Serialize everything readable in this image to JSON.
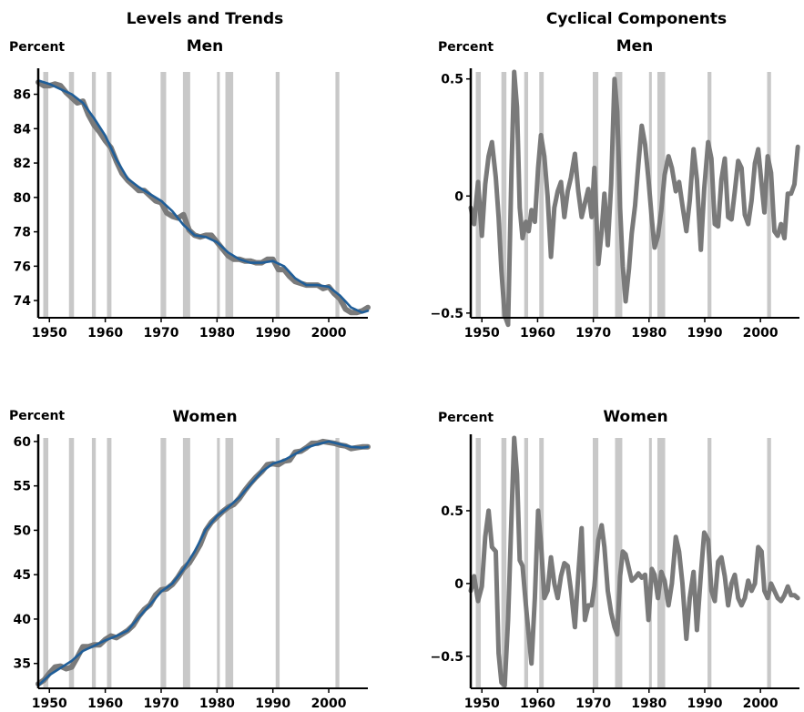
{
  "column_titles": [
    "Levels and Trends",
    "Cyclical Components"
  ],
  "colors": {
    "actual": "#7a7a7a",
    "trend": "#1f5e99",
    "recession": "#c8c8c8",
    "axis": "#000000"
  },
  "recessions": [
    [
      1948.9,
      1949.8
    ],
    [
      1953.5,
      1954.4
    ],
    [
      1957.6,
      1958.3
    ],
    [
      1960.3,
      1961.1
    ],
    [
      1969.9,
      1970.9
    ],
    [
      1973.9,
      1975.2
    ],
    [
      1980.0,
      1980.5
    ],
    [
      1981.5,
      1982.9
    ],
    [
      1990.5,
      1991.2
    ],
    [
      2001.2,
      2001.9
    ]
  ],
  "chart_data": [
    {
      "id": "men-level",
      "type": "line",
      "title": "Men",
      "ylabel": "Percent",
      "xlim": [
        1948,
        2007
      ],
      "ylim": [
        73,
        87.3
      ],
      "xticks": [
        1950,
        1960,
        1970,
        1980,
        1990,
        2000
      ],
      "xtick_labels": [
        "1950",
        "1960",
        "1970",
        "1980",
        "1990",
        "2000"
      ],
      "yticks": [
        74,
        76,
        78,
        80,
        82,
        84,
        86
      ],
      "ytick_labels": [
        "74",
        "76",
        "78",
        "80",
        "82",
        "84",
        "86"
      ],
      "series": [
        {
          "role": "actual",
          "x": [
            1948,
            1949,
            1950,
            1951,
            1952,
            1953,
            1954,
            1955,
            1956,
            1957,
            1958,
            1959,
            1960,
            1961,
            1962,
            1963,
            1964,
            1965,
            1966,
            1967,
            1968,
            1969,
            1970,
            1971,
            1972,
            1973,
            1974,
            1975,
            1976,
            1977,
            1978,
            1979,
            1980,
            1981,
            1982,
            1983,
            1984,
            1985,
            1986,
            1987,
            1988,
            1989,
            1990,
            1991,
            1992,
            1993,
            1994,
            1995,
            1996,
            1997,
            1998,
            1999,
            2000,
            2001,
            2002,
            2003,
            2004,
            2005,
            2006,
            2007
          ],
          "y": [
            86.7,
            86.5,
            86.5,
            86.6,
            86.5,
            86.1,
            85.8,
            85.5,
            85.6,
            84.8,
            84.2,
            83.8,
            83.3,
            82.9,
            82.1,
            81.4,
            81.0,
            80.7,
            80.4,
            80.4,
            80.1,
            79.8,
            79.7,
            79.1,
            78.9,
            78.8,
            79.0,
            78.1,
            77.8,
            77.7,
            77.8,
            77.8,
            77.4,
            77.0,
            76.6,
            76.4,
            76.4,
            76.3,
            76.3,
            76.2,
            76.2,
            76.4,
            76.4,
            75.8,
            75.8,
            75.4,
            75.1,
            75.0,
            74.9,
            74.9,
            74.9,
            74.7,
            74.8,
            74.4,
            74.1,
            73.5,
            73.3,
            73.3,
            73.4,
            73.6
          ]
        },
        {
          "role": "trend",
          "x": [
            1948,
            1950,
            1952,
            1954,
            1956,
            1958,
            1960,
            1962,
            1964,
            1966,
            1968,
            1970,
            1972,
            1974,
            1976,
            1978,
            1980,
            1982,
            1984,
            1986,
            1988,
            1990,
            1992,
            1994,
            1996,
            1998,
            2000,
            2002,
            2004,
            2006,
            2007
          ],
          "y": [
            86.8,
            86.6,
            86.3,
            86.0,
            85.5,
            84.6,
            83.6,
            82.2,
            81.1,
            80.6,
            80.2,
            79.8,
            79.2,
            78.4,
            77.8,
            77.7,
            77.4,
            76.8,
            76.4,
            76.2,
            76.2,
            76.3,
            76.0,
            75.3,
            74.9,
            74.9,
            74.8,
            74.3,
            73.6,
            73.3,
            73.4
          ]
        }
      ]
    },
    {
      "id": "men-cycle",
      "type": "line",
      "title": "Men",
      "ylabel": "Percent",
      "xlim": [
        1948,
        2007
      ],
      "ylim": [
        -0.52,
        0.53
      ],
      "xticks": [
        1950,
        1960,
        1970,
        1980,
        1990,
        2000
      ],
      "xtick_labels": [
        "1950",
        "1960",
        "1970",
        "1980",
        "1990",
        "2000"
      ],
      "yticks": [
        -0.5,
        0,
        0.5
      ],
      "ytick_labels": [
        "−0.5",
        "0",
        "0.5"
      ],
      "series": [
        {
          "role": "actual",
          "x": [
            1948,
            1948.6,
            1949.3,
            1950.0,
            1950.6,
            1951.2,
            1951.8,
            1952.5,
            1953.0,
            1953.5,
            1954.1,
            1954.7,
            1955.3,
            1955.8,
            1956.3,
            1956.8,
            1957.3,
            1957.9,
            1958.4,
            1958.9,
            1959.5,
            1960.1,
            1960.6,
            1961.2,
            1961.8,
            1962.4,
            1963.0,
            1963.6,
            1964.2,
            1964.8,
            1965.4,
            1966.0,
            1966.7,
            1967.3,
            1967.9,
            1968.5,
            1969.1,
            1969.7,
            1970.2,
            1970.9,
            1971.5,
            1972.0,
            1972.6,
            1973.2,
            1973.8,
            1974.3,
            1974.8,
            1975.3,
            1975.8,
            1976.4,
            1976.9,
            1977.5,
            1978.1,
            1978.7,
            1979.3,
            1979.9,
            1980.5,
            1981.0,
            1981.6,
            1982.2,
            1982.8,
            1983.5,
            1984.1,
            1984.8,
            1985.4,
            1986.0,
            1986.7,
            1987.3,
            1988.0,
            1988.6,
            1989.3,
            1989.9,
            1990.6,
            1991.2,
            1991.8,
            1992.4,
            1993.0,
            1993.6,
            1994.2,
            1994.8,
            1995.4,
            1996.0,
            1996.6,
            1997.2,
            1997.8,
            1998.4,
            1999.0,
            1999.6,
            2000.2,
            2000.7,
            2001.3,
            2001.9,
            2002.5,
            2003.1,
            2003.7,
            2004.3,
            2004.9,
            2005.5,
            2006.1,
            2006.7
          ],
          "y": [
            -0.05,
            -0.12,
            0.06,
            -0.17,
            0.05,
            0.17,
            0.23,
            0.08,
            -0.09,
            -0.32,
            -0.51,
            -0.55,
            0.1,
            0.53,
            0.38,
            -0.05,
            -0.18,
            -0.11,
            -0.15,
            -0.06,
            -0.11,
            0.12,
            0.26,
            0.17,
            0.0,
            -0.26,
            -0.05,
            0.02,
            0.06,
            -0.09,
            0.02,
            0.08,
            0.18,
            0.02,
            -0.09,
            -0.03,
            0.03,
            -0.09,
            0.12,
            -0.29,
            -0.15,
            0.01,
            -0.21,
            0.05,
            0.5,
            0.36,
            -0.05,
            -0.3,
            -0.45,
            -0.31,
            -0.16,
            -0.04,
            0.14,
            0.3,
            0.22,
            0.07,
            -0.1,
            -0.22,
            -0.17,
            -0.06,
            0.09,
            0.17,
            0.12,
            0.02,
            0.06,
            -0.04,
            -0.15,
            -0.02,
            0.2,
            0.07,
            -0.23,
            0.03,
            0.23,
            0.16,
            -0.12,
            -0.13,
            0.07,
            0.16,
            -0.09,
            -0.1,
            0.02,
            0.15,
            0.12,
            -0.08,
            -0.12,
            -0.02,
            0.14,
            0.2,
            0.05,
            -0.07,
            0.17,
            0.1,
            -0.15,
            -0.17,
            -0.12,
            -0.18,
            0.01,
            0.01,
            0.05,
            0.21
          ]
        }
      ]
    },
    {
      "id": "women-level",
      "type": "line",
      "title": "Women",
      "ylabel": "Percent",
      "xlim": [
        1948,
        2007
      ],
      "ylim": [
        32.2,
        60.4
      ],
      "xticks": [
        1950,
        1960,
        1970,
        1980,
        1990,
        2000
      ],
      "xtick_labels": [
        "1950",
        "1960",
        "1970",
        "1980",
        "1990",
        "2000"
      ],
      "yticks": [
        35,
        40,
        45,
        50,
        55,
        60
      ],
      "ytick_labels": [
        "35",
        "40",
        "45",
        "50",
        "55",
        "60"
      ],
      "series": [
        {
          "role": "actual",
          "x": [
            1948,
            1949,
            1950,
            1951,
            1952,
            1953,
            1954,
            1955,
            1956,
            1957,
            1958,
            1959,
            1960,
            1961,
            1962,
            1963,
            1964,
            1965,
            1966,
            1967,
            1968,
            1969,
            1970,
            1971,
            1972,
            1973,
            1974,
            1975,
            1976,
            1977,
            1978,
            1979,
            1980,
            1981,
            1982,
            1983,
            1984,
            1985,
            1986,
            1987,
            1988,
            1989,
            1990,
            1991,
            1992,
            1993,
            1994,
            1995,
            1996,
            1997,
            1998,
            1999,
            2000,
            2001,
            2002,
            2003,
            2004,
            2005,
            2006,
            2007
          ],
          "y": [
            32.7,
            33.1,
            33.9,
            34.6,
            34.7,
            34.4,
            34.6,
            35.7,
            36.9,
            36.9,
            37.1,
            37.1,
            37.7,
            38.1,
            37.9,
            38.3,
            38.7,
            39.3,
            40.3,
            41.1,
            41.6,
            42.7,
            43.3,
            43.4,
            43.9,
            44.7,
            45.7,
            46.3,
            47.3,
            48.4,
            50.0,
            50.9,
            51.5,
            52.1,
            52.6,
            52.9,
            53.6,
            54.5,
            55.3,
            56.0,
            56.6,
            57.4,
            57.5,
            57.4,
            57.8,
            57.9,
            58.8,
            58.9,
            59.3,
            59.8,
            59.8,
            60.0,
            59.9,
            59.8,
            59.6,
            59.5,
            59.2,
            59.3,
            59.4,
            59.4
          ]
        },
        {
          "role": "trend",
          "x": [
            1948,
            1950,
            1952,
            1954,
            1956,
            1958,
            1960,
            1962,
            1964,
            1966,
            1968,
            1970,
            1972,
            1974,
            1976,
            1978,
            1980,
            1982,
            1984,
            1986,
            1988,
            1990,
            1992,
            1994,
            1996,
            1998,
            2000,
            2002,
            2004,
            2006,
            2007
          ],
          "y": [
            32.5,
            33.7,
            34.5,
            35.3,
            36.4,
            37.0,
            37.6,
            38.1,
            38.7,
            40.2,
            41.6,
            43.1,
            44.0,
            45.6,
            47.6,
            50.1,
            51.6,
            52.6,
            53.7,
            55.2,
            56.6,
            57.5,
            57.9,
            58.6,
            59.3,
            59.7,
            60.0,
            59.7,
            59.4,
            59.3,
            59.4
          ]
        }
      ]
    },
    {
      "id": "women-cycle",
      "type": "line",
      "title": "Women",
      "ylabel": "Percent",
      "xlim": [
        1948,
        2007
      ],
      "ylim": [
        -0.72,
        1.0
      ],
      "xticks": [
        1950,
        1960,
        1970,
        1980,
        1990,
        2000
      ],
      "xtick_labels": [
        "1950",
        "1960",
        "1970",
        "1980",
        "1990",
        "2000"
      ],
      "yticks": [
        -0.5,
        0,
        0.5
      ],
      "ytick_labels": [
        "−0.5",
        "0",
        "0.5"
      ],
      "series": [
        {
          "role": "actual",
          "x": [
            1948,
            1948.6,
            1949.3,
            1950.0,
            1950.6,
            1951.2,
            1951.8,
            1952.5,
            1953.0,
            1953.5,
            1954.1,
            1954.7,
            1955.3,
            1955.8,
            1956.3,
            1956.8,
            1957.3,
            1957.9,
            1958.4,
            1958.9,
            1959.5,
            1960.1,
            1960.6,
            1961.2,
            1961.8,
            1962.4,
            1963.0,
            1963.6,
            1964.2,
            1964.8,
            1965.4,
            1966.0,
            1966.7,
            1967.3,
            1967.9,
            1968.5,
            1969.1,
            1969.7,
            1970.2,
            1970.9,
            1971.5,
            1972.0,
            1972.6,
            1973.2,
            1973.8,
            1974.3,
            1974.8,
            1975.3,
            1975.8,
            1976.4,
            1976.9,
            1977.5,
            1978.1,
            1978.7,
            1979.3,
            1979.9,
            1980.5,
            1981.0,
            1981.6,
            1982.2,
            1982.8,
            1983.5,
            1984.1,
            1984.8,
            1985.4,
            1986.0,
            1986.7,
            1987.3,
            1988.0,
            1988.6,
            1989.3,
            1989.9,
            1990.6,
            1991.2,
            1991.8,
            1992.4,
            1993.0,
            1993.6,
            1994.2,
            1994.8,
            1995.4,
            1996.0,
            1996.6,
            1997.2,
            1997.8,
            1998.4,
            1999.0,
            1999.6,
            2000.2,
            2000.7,
            2001.3,
            2001.9,
            2002.5,
            2003.1,
            2003.7,
            2004.3,
            2004.9,
            2005.5,
            2006.1,
            2006.7
          ],
          "y": [
            -0.05,
            0.05,
            -0.12,
            -0.02,
            0.32,
            0.5,
            0.25,
            0.22,
            -0.48,
            -0.68,
            -0.7,
            -0.25,
            0.45,
            1.0,
            0.75,
            0.16,
            0.12,
            -0.15,
            -0.35,
            -0.55,
            -0.1,
            0.5,
            0.28,
            -0.1,
            -0.05,
            0.18,
            0.0,
            -0.1,
            0.05,
            0.14,
            0.12,
            -0.05,
            -0.3,
            0.06,
            0.38,
            -0.25,
            -0.15,
            -0.15,
            -0.02,
            0.3,
            0.4,
            0.25,
            -0.05,
            -0.2,
            -0.3,
            -0.35,
            0.05,
            0.22,
            0.2,
            0.1,
            0.02,
            0.04,
            0.07,
            0.04,
            0.06,
            -0.25,
            0.1,
            0.06,
            -0.1,
            0.08,
            0.02,
            -0.15,
            0.0,
            0.32,
            0.22,
            0.0,
            -0.38,
            -0.1,
            0.08,
            -0.32,
            0.06,
            0.35,
            0.3,
            -0.05,
            -0.12,
            0.15,
            0.18,
            0.05,
            -0.15,
            0.0,
            0.06,
            -0.1,
            -0.15,
            -0.1,
            0.02,
            -0.05,
            0.0,
            0.25,
            0.22,
            -0.05,
            -0.1,
            0.0,
            -0.05,
            -0.1,
            -0.12,
            -0.08,
            -0.02,
            -0.08,
            -0.08,
            -0.1
          ]
        }
      ]
    }
  ]
}
